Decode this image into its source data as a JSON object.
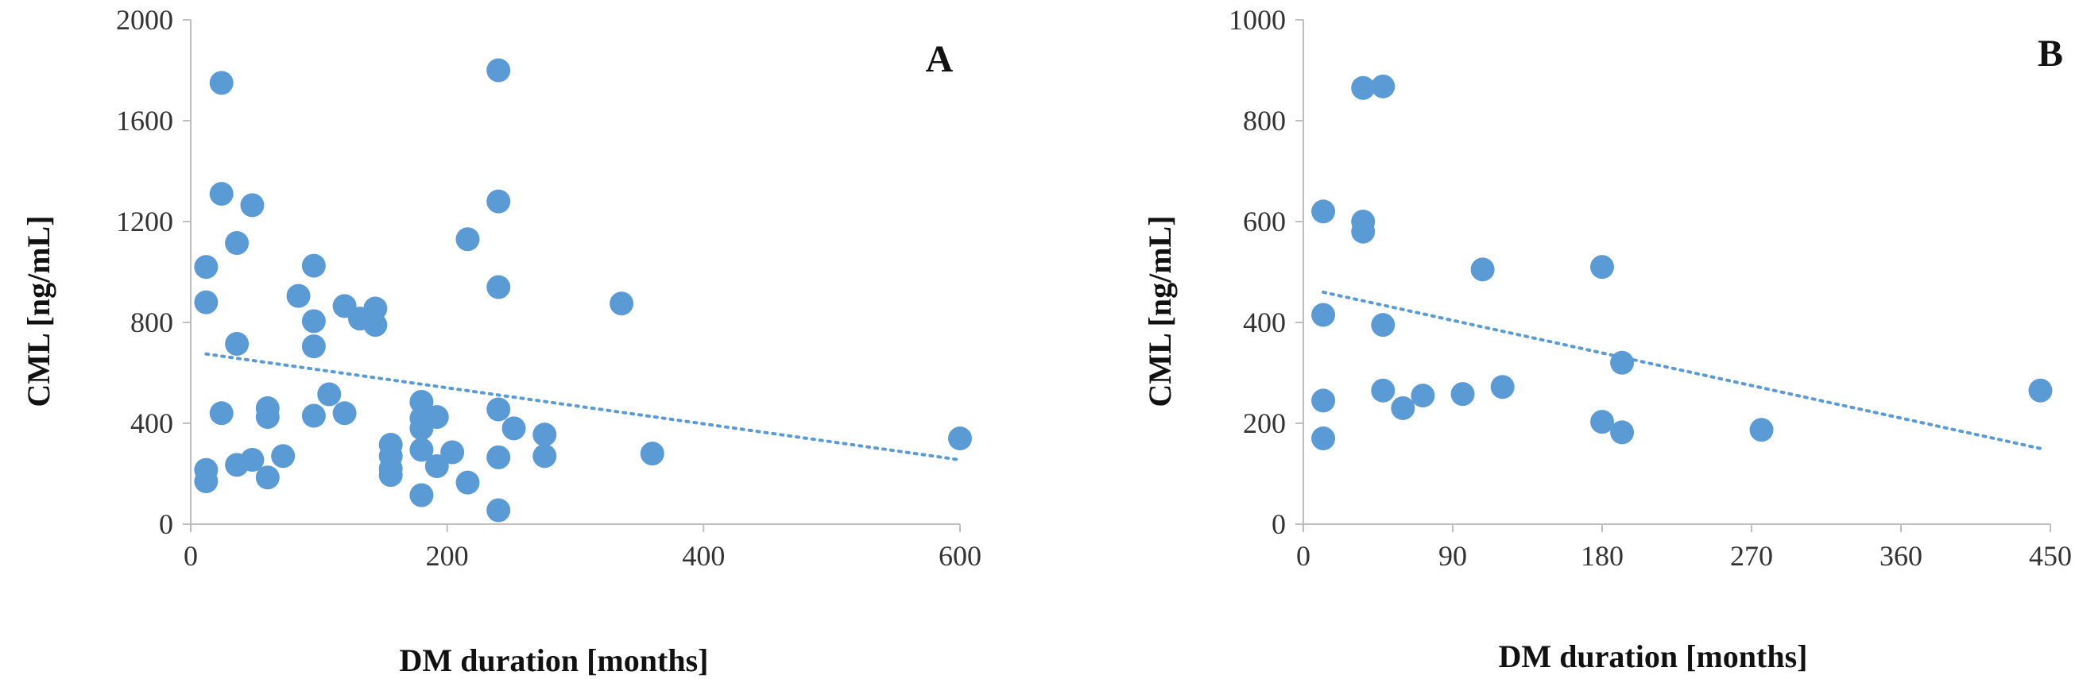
{
  "colors": {
    "marker": "#5b9bd5",
    "axis": "#bfbfbf",
    "text": "#333333"
  },
  "chart_data": [
    {
      "type": "scatter",
      "panel_label": "A",
      "xlabel": "DM duration [months]",
      "ylabel": "CML [ng/mL]",
      "xlim": [
        0,
        600
      ],
      "ylim": [
        0,
        2000
      ],
      "xticks": [
        0,
        200,
        400,
        600
      ],
      "yticks": [
        0,
        400,
        800,
        1200,
        1600,
        2000
      ],
      "trendline": {
        "style": "dotted",
        "x": [
          12,
          600
        ],
        "y": [
          675,
          255
        ]
      },
      "points": [
        [
          12,
          1020
        ],
        [
          12,
          880
        ],
        [
          12,
          215
        ],
        [
          12,
          170
        ],
        [
          24,
          1750
        ],
        [
          24,
          1310
        ],
        [
          24,
          440
        ],
        [
          36,
          1115
        ],
        [
          36,
          715
        ],
        [
          36,
          235
        ],
        [
          48,
          1265
        ],
        [
          48,
          255
        ],
        [
          60,
          460
        ],
        [
          60,
          425
        ],
        [
          60,
          185
        ],
        [
          72,
          270
        ],
        [
          84,
          905
        ],
        [
          96,
          1025
        ],
        [
          96,
          805
        ],
        [
          96,
          705
        ],
        [
          96,
          430
        ],
        [
          108,
          515
        ],
        [
          120,
          865
        ],
        [
          120,
          440
        ],
        [
          132,
          815
        ],
        [
          144,
          855
        ],
        [
          144,
          790
        ],
        [
          156,
          315
        ],
        [
          156,
          270
        ],
        [
          156,
          220
        ],
        [
          156,
          195
        ],
        [
          180,
          485
        ],
        [
          180,
          420
        ],
        [
          180,
          380
        ],
        [
          180,
          295
        ],
        [
          180,
          115
        ],
        [
          192,
          425
        ],
        [
          192,
          230
        ],
        [
          204,
          285
        ],
        [
          216,
          1130
        ],
        [
          216,
          165
        ],
        [
          240,
          1800
        ],
        [
          240,
          1280
        ],
        [
          240,
          940
        ],
        [
          240,
          455
        ],
        [
          240,
          265
        ],
        [
          240,
          55
        ],
        [
          252,
          380
        ],
        [
          276,
          355
        ],
        [
          276,
          270
        ],
        [
          336,
          875
        ],
        [
          360,
          280
        ],
        [
          600,
          340
        ]
      ]
    },
    {
      "type": "scatter",
      "panel_label": "B",
      "xlabel": "DM duration [months]",
      "ylabel": "CML [ng/mL]",
      "xlim": [
        0,
        450
      ],
      "ylim": [
        0,
        1000
      ],
      "xticks": [
        0,
        90,
        180,
        270,
        360,
        450
      ],
      "yticks": [
        0,
        200,
        400,
        600,
        800,
        1000
      ],
      "trendline": {
        "style": "dotted",
        "x": [
          12,
          444
        ],
        "y": [
          460,
          150
        ]
      },
      "points": [
        [
          12,
          620
        ],
        [
          12,
          415
        ],
        [
          12,
          245
        ],
        [
          12,
          170
        ],
        [
          36,
          865
        ],
        [
          36,
          600
        ],
        [
          36,
          580
        ],
        [
          48,
          868
        ],
        [
          48,
          395
        ],
        [
          48,
          265
        ],
        [
          60,
          230
        ],
        [
          72,
          255
        ],
        [
          96,
          258
        ],
        [
          108,
          505
        ],
        [
          120,
          272
        ],
        [
          180,
          510
        ],
        [
          180,
          203
        ],
        [
          192,
          320
        ],
        [
          192,
          182
        ],
        [
          276,
          187
        ],
        [
          444,
          265
        ]
      ]
    }
  ]
}
